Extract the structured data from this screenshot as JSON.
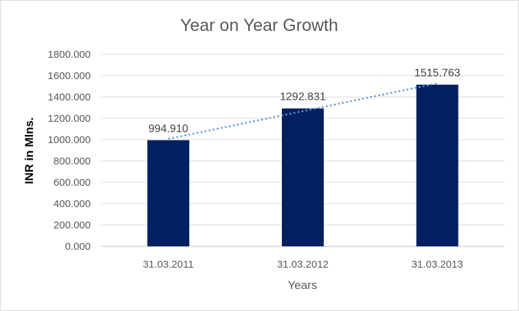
{
  "chart_data": {
    "type": "bar",
    "title": "Year on Year Growth",
    "xlabel": "Years",
    "ylabel": "INR in Mlns.",
    "categories": [
      "31.03.2011",
      "31.03.2012",
      "31.03.2013"
    ],
    "series": [
      {
        "values": [
          994.91,
          1292.831,
          1515.763
        ],
        "data_labels": [
          "994.910",
          "1292.831",
          "1515.763"
        ],
        "color": "#002060"
      }
    ],
    "trendline": {
      "type": "linear",
      "style": "dotted",
      "color": "#5b9bd5"
    },
    "ylim": [
      0,
      1800
    ],
    "y_ticks": [
      "0.000",
      "200.000",
      "400.000",
      "600.000",
      "800.000",
      "1000.000",
      "1200.000",
      "1400.000",
      "1600.000",
      "1800.000"
    ],
    "grid": true,
    "legend": "none"
  }
}
